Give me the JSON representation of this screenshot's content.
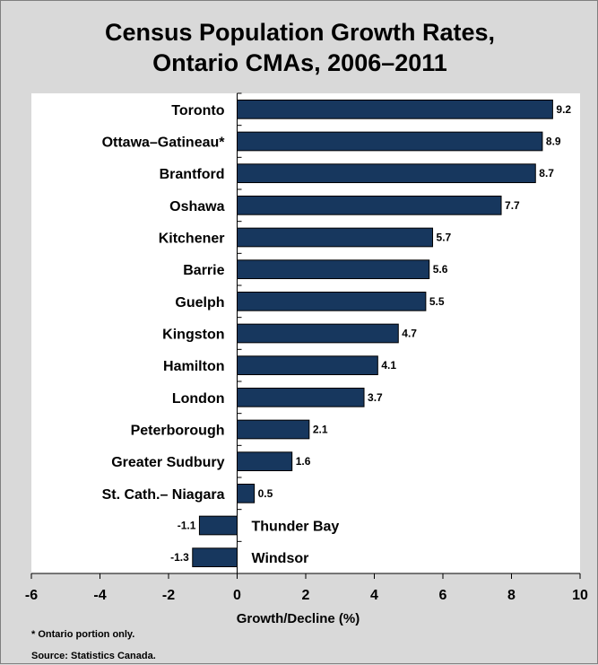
{
  "chart_data": {
    "type": "bar",
    "orientation": "horizontal",
    "title": [
      "Census Population Growth Rates,",
      "Ontario CMAs, 2006–2011"
    ],
    "xlabel": "Growth/Decline (%)",
    "ylabel": "",
    "xlim": [
      -6,
      10
    ],
    "xticks": [
      -6,
      -4,
      -2,
      0,
      2,
      4,
      6,
      8,
      10
    ],
    "categories": [
      "Toronto",
      "Ottawa–Gatineau*",
      "Brantford",
      "Oshawa",
      "Kitchener",
      "Barrie",
      "Guelph",
      "Kingston",
      "Hamilton",
      "London",
      "Peterborough",
      "Greater Sudbury",
      "St. Cath.– Niagara",
      "Thunder Bay",
      "Windsor"
    ],
    "values": [
      9.2,
      8.9,
      8.7,
      7.7,
      5.7,
      5.6,
      5.5,
      4.7,
      4.1,
      3.7,
      2.1,
      1.6,
      0.5,
      -1.1,
      -1.3
    ],
    "data_labels": [
      "9.2",
      "8.9",
      "8.7",
      "7.7",
      "5.7",
      "5.6",
      "5.5",
      "4.7",
      "4.1",
      "3.7",
      "2.1",
      "1.6",
      "0.5",
      "-1.1",
      "-1.3"
    ],
    "bar_color": "#17375e",
    "grid": false,
    "legend": "none"
  },
  "notes": {
    "footnote": "* Ontario portion only.",
    "source": "Source: Statistics Canada."
  }
}
